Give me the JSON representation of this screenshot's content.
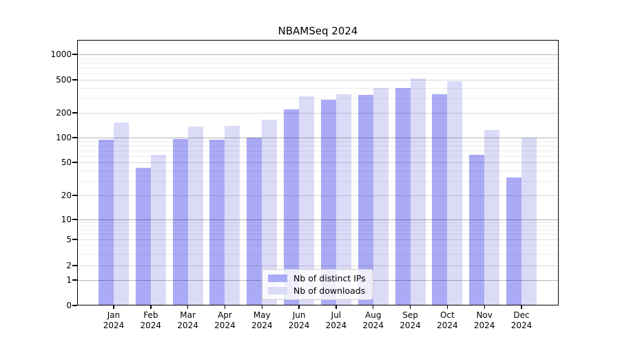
{
  "colors": {
    "bar_ips": "#aaaaf6",
    "bar_downloads": "#dbdbf8",
    "grid_major": "#b3b3b3",
    "grid_mid": "#d9d9d9",
    "grid_minor": "#ededed",
    "spine": "#000000",
    "legend_border": "#cccccc"
  },
  "chart_data": {
    "type": "bar",
    "title": "NBAMSeq 2024",
    "categories": [
      "Jan 2024",
      "Feb 2024",
      "Mar 2024",
      "Apr 2024",
      "May 2024",
      "Jun 2024",
      "Jul 2024",
      "Aug 2024",
      "Sep 2024",
      "Oct 2024",
      "Nov 2024",
      "Dec 2024"
    ],
    "months": [
      "Jan",
      "Feb",
      "Mar",
      "Apr",
      "May",
      "Jun",
      "Jul",
      "Aug",
      "Sep",
      "Oct",
      "Nov",
      "Dec"
    ],
    "year": "2024",
    "series": [
      {
        "key": "distinct-ips",
        "name": "Nb of distinct IPs",
        "color": "#aaaaf6",
        "values": [
          95,
          43,
          96,
          95,
          100,
          222,
          290,
          330,
          400,
          335,
          62,
          33
        ]
      },
      {
        "key": "downloads",
        "name": "Nb of downloads",
        "color": "#dbdbf8",
        "values": [
          152,
          62,
          137,
          139,
          165,
          315,
          335,
          400,
          520,
          477,
          124,
          100
        ]
      }
    ],
    "xlabel": "",
    "ylabel": "",
    "y_axis": {
      "scale": "log-like",
      "ticks": [
        1000,
        500,
        200,
        100,
        50,
        20,
        10,
        5,
        2,
        1,
        0
      ],
      "ylim": [
        0,
        1400
      ]
    },
    "grid": true,
    "legend_position": "lower-center"
  }
}
